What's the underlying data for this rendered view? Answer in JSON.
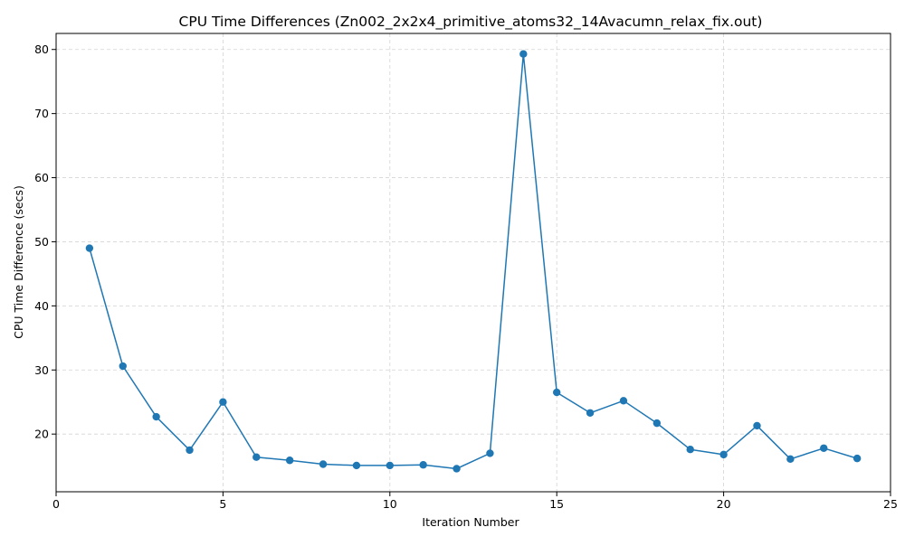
{
  "chart_data": {
    "type": "line",
    "title": "CPU Time Differences (Zn002_2x2x4_primitive_atoms32_14Avacumn_relax_fix.out)",
    "xlabel": "Iteration Number",
    "ylabel": "CPU Time Difference (secs)",
    "xlim": [
      0,
      25
    ],
    "ylim": [
      11,
      82.5
    ],
    "xticks": [
      0,
      5,
      10,
      15,
      20,
      25
    ],
    "yticks": [
      20,
      30,
      40,
      50,
      60,
      70,
      80
    ],
    "grid": true,
    "grid_style": "dashed",
    "line_color": "#1f77b4",
    "marker": "circle",
    "x": [
      1,
      2,
      3,
      4,
      5,
      6,
      7,
      8,
      9,
      10,
      11,
      12,
      13,
      14,
      15,
      16,
      17,
      18,
      19,
      20,
      21,
      22,
      23,
      24
    ],
    "y": [
      49.0,
      30.6,
      22.7,
      17.5,
      25.0,
      16.4,
      15.9,
      15.3,
      15.1,
      15.1,
      15.2,
      14.6,
      17.0,
      79.3,
      26.5,
      23.3,
      25.2,
      21.7,
      17.6,
      16.8,
      21.3,
      16.1,
      17.8,
      16.2
    ]
  }
}
